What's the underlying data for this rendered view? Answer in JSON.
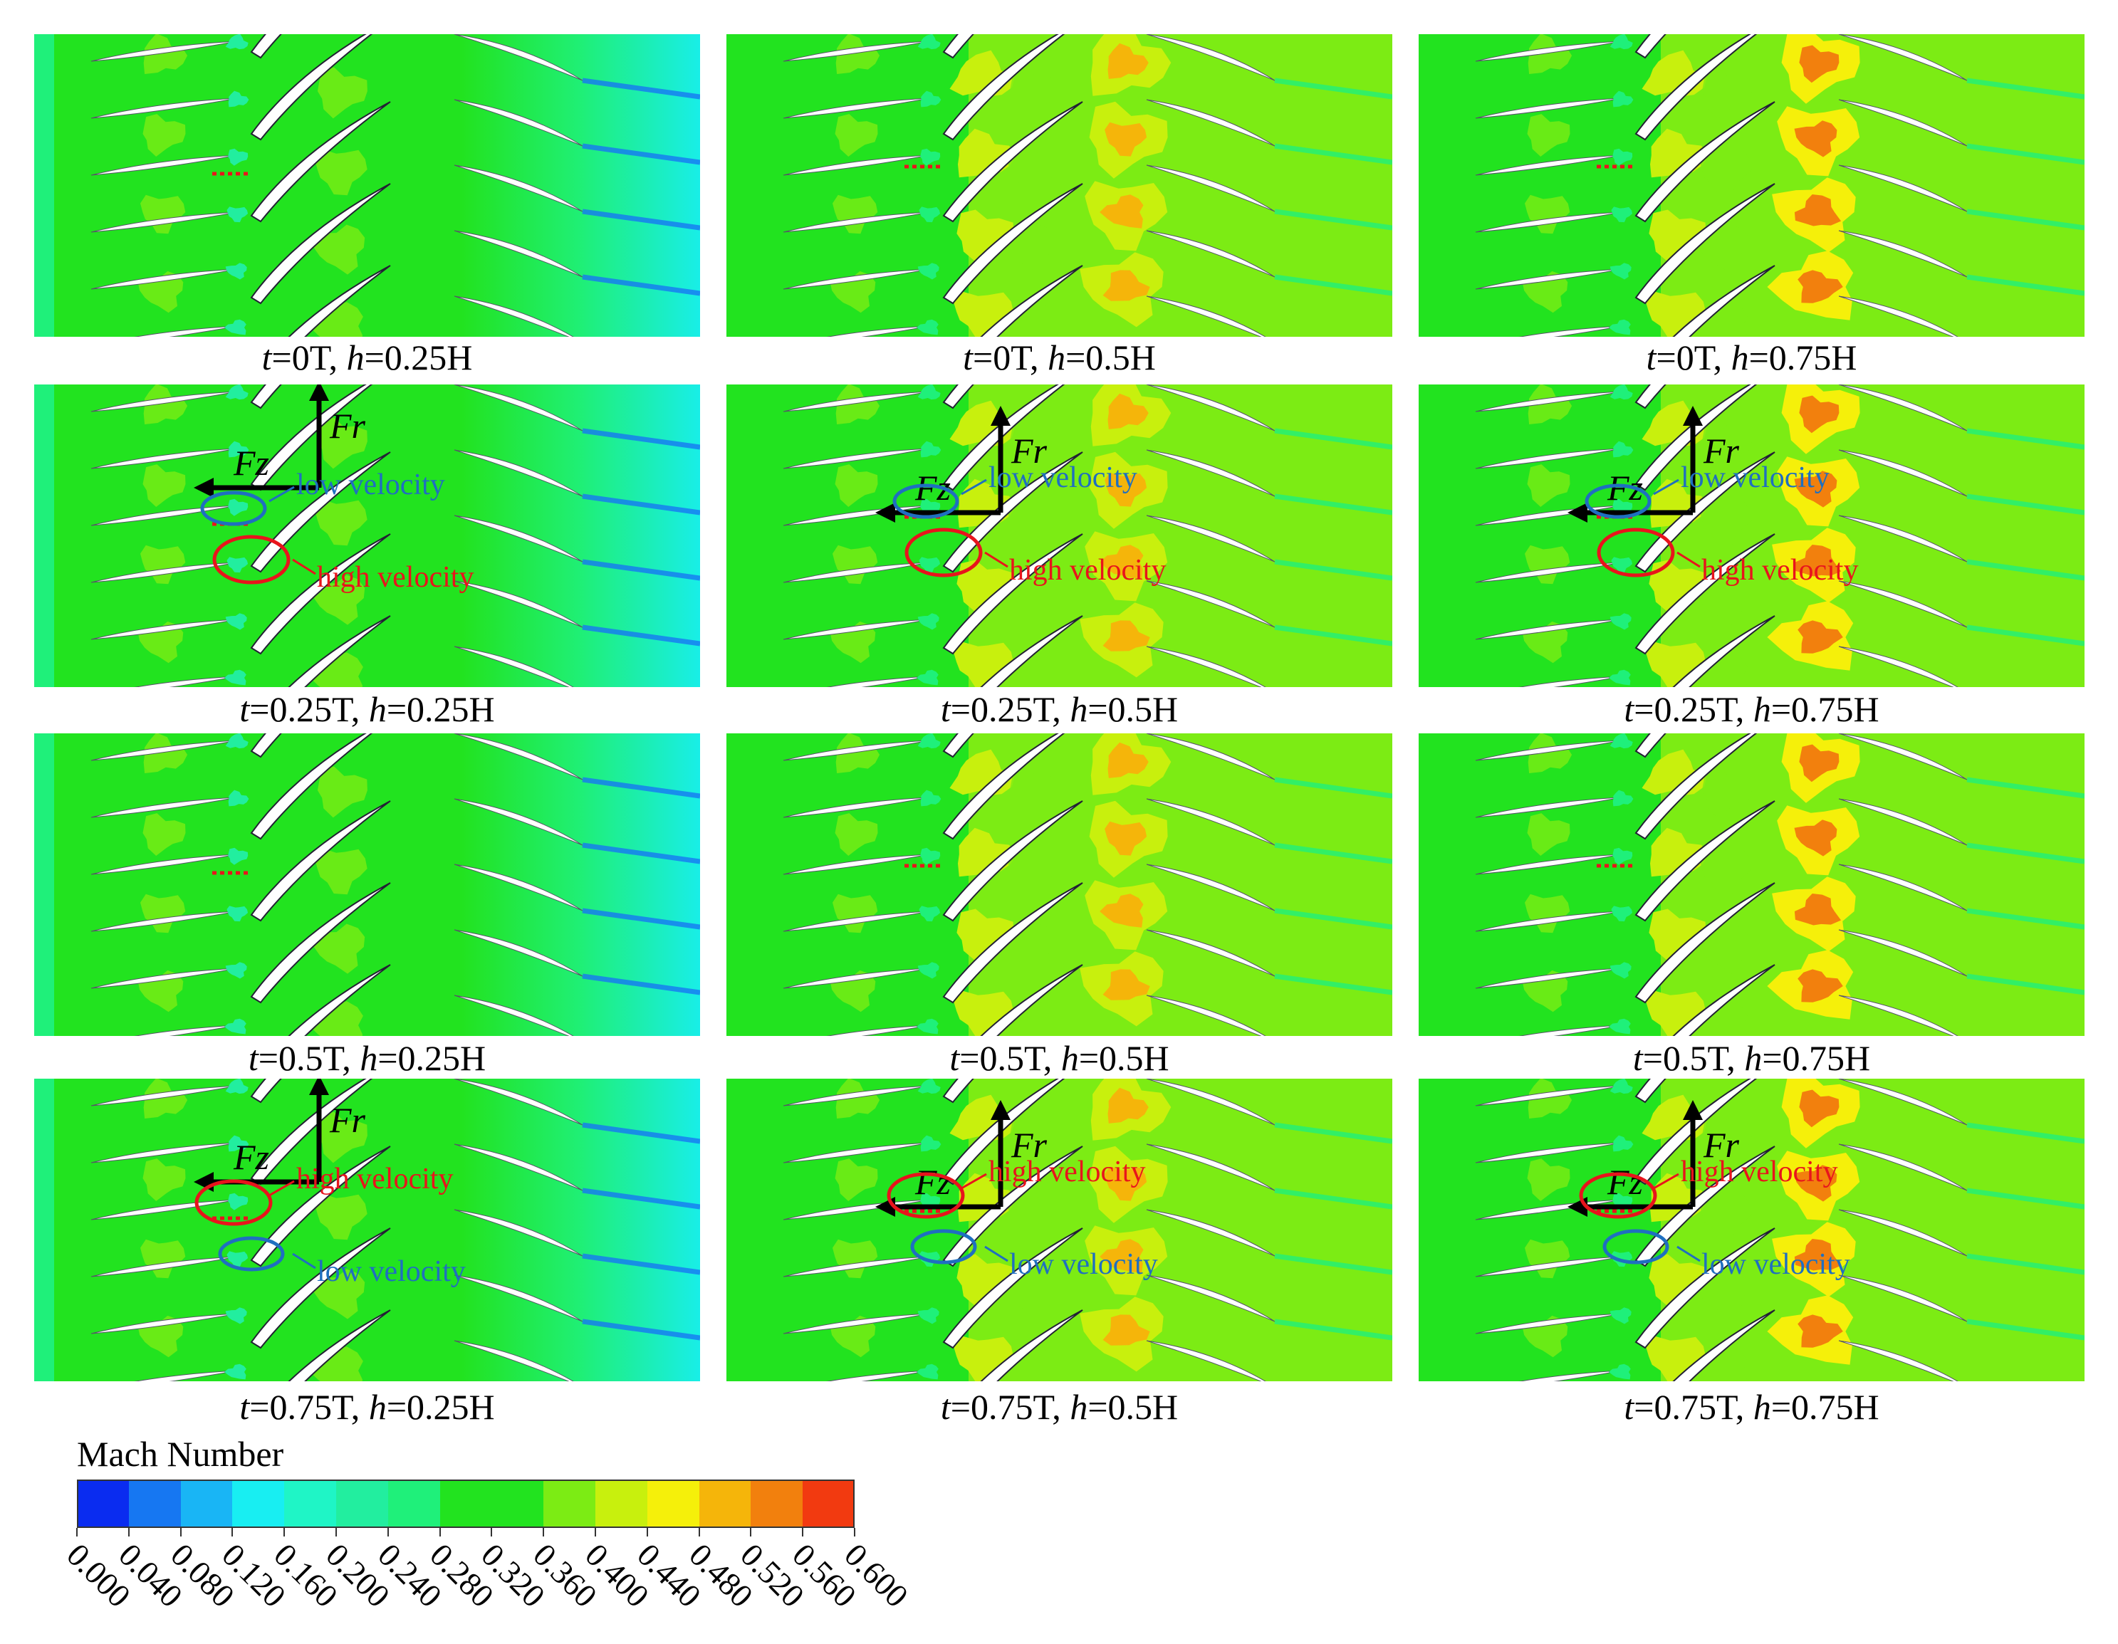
{
  "panels": [
    {
      "t": "0T",
      "h": "0.25H",
      "annotated": false
    },
    {
      "t": "0T",
      "h": "0.5H",
      "annotated": false
    },
    {
      "t": "0T",
      "h": "0.75H",
      "annotated": false
    },
    {
      "t": "0.25T",
      "h": "0.25H",
      "annotated": true,
      "top_ellipse": "low",
      "bottom_ellipse": "high"
    },
    {
      "t": "0.25T",
      "h": "0.5H",
      "annotated": true,
      "top_ellipse": "low",
      "bottom_ellipse": "high"
    },
    {
      "t": "0.25T",
      "h": "0.75H",
      "annotated": true,
      "top_ellipse": "low",
      "bottom_ellipse": "high"
    },
    {
      "t": "0.5T",
      "h": "0.25H",
      "annotated": false
    },
    {
      "t": "0.5T",
      "h": "0.5H",
      "annotated": false
    },
    {
      "t": "0.5T",
      "h": "0.75H",
      "annotated": false
    },
    {
      "t": "0.75T",
      "h": "0.25H",
      "annotated": true,
      "top_ellipse": "high",
      "bottom_ellipse": "low"
    },
    {
      "t": "0.75T",
      "h": "0.5H",
      "annotated": true,
      "top_ellipse": "high",
      "bottom_ellipse": "low"
    },
    {
      "t": "0.75T",
      "h": "0.75H",
      "annotated": true,
      "top_ellipse": "high",
      "bottom_ellipse": "low"
    }
  ],
  "labels": {
    "t_var": "t",
    "h_var": "h",
    "fr": "Fr",
    "fz": "Fz",
    "low_velocity": "low velocity",
    "high_velocity": "high velocity"
  },
  "colors": {
    "low_velocity": "#1f6fc0",
    "high_velocity": "#e8141c",
    "force_arrow": "#000000",
    "blade_fill": "#ffffff"
  },
  "legend": {
    "title": "Mach Number",
    "ticks": [
      "0.000",
      "0.040",
      "0.080",
      "0.120",
      "0.160",
      "0.200",
      "0.240",
      "0.280",
      "0.320",
      "0.360",
      "0.400",
      "0.440",
      "0.480",
      "0.520",
      "0.560",
      "0.600"
    ],
    "colors": [
      "#0a2cf0",
      "#1677f2",
      "#19b5f5",
      "#18eef2",
      "#1ff5c6",
      "#22ee9f",
      "#1ff07a",
      "#22e31f",
      "#22e31f",
      "#7cec14",
      "#c8f00d",
      "#f5f00a",
      "#f5b50a",
      "#f2800d",
      "#f23a10"
    ]
  }
}
